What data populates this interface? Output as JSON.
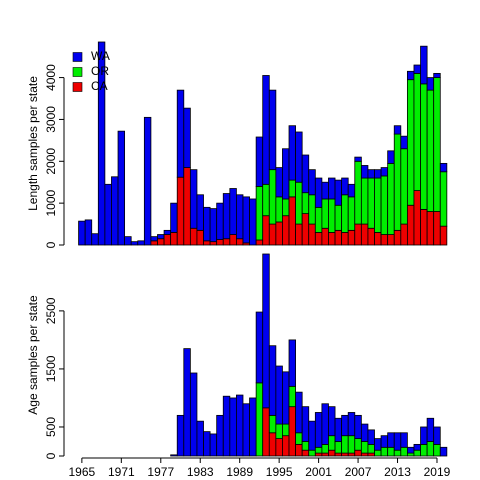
{
  "chart_data": [
    {
      "type": "bar",
      "stacked": true,
      "ylabel": "Length samples per state",
      "legend": "topleft",
      "x": [
        1965,
        1966,
        1967,
        1968,
        1969,
        1970,
        1971,
        1972,
        1973,
        1974,
        1975,
        1976,
        1977,
        1978,
        1979,
        1980,
        1981,
        1982,
        1983,
        1984,
        1985,
        1986,
        1987,
        1988,
        1989,
        1990,
        1991,
        1992,
        1993,
        1994,
        1995,
        1996,
        1997,
        1998,
        1999,
        2000,
        2001,
        2002,
        2003,
        2004,
        2005,
        2006,
        2007,
        2008,
        2009,
        2010,
        2011,
        2012,
        2013,
        2014,
        2015,
        2016,
        2017,
        2018,
        2019,
        2020,
        2021
      ],
      "xlim": [
        1963.5,
        2022.5
      ],
      "ylim": [
        0,
        4850
      ],
      "yticks": [
        0,
        1000,
        2000,
        3000,
        4000
      ],
      "series": [
        {
          "name": "WA",
          "color": "#0000ee",
          "values": [
            570,
            600,
            270,
            4850,
            1450,
            1630,
            2720,
            200,
            80,
            100,
            3050,
            100,
            100,
            100,
            700,
            2080,
            1420,
            1400,
            850,
            800,
            790,
            870,
            1080,
            1100,
            1050,
            1100,
            1100,
            1180,
            2600,
            1900,
            700,
            1200,
            1300,
            1200,
            900,
            600,
            700,
            400,
            500,
            600,
            400,
            300,
            100,
            300,
            200,
            200,
            200,
            300,
            200,
            300,
            200,
            200,
            900,
            300,
            100,
            200,
            0
          ]
        },
        {
          "name": "OR",
          "color": "#00ee00",
          "values": [
            0,
            0,
            0,
            0,
            0,
            0,
            0,
            0,
            0,
            0,
            0,
            0,
            0,
            0,
            0,
            0,
            0,
            0,
            0,
            0,
            0,
            0,
            0,
            0,
            0,
            0,
            0,
            1280,
            750,
            1300,
            600,
            400,
            400,
            1000,
            500,
            700,
            600,
            700,
            800,
            600,
            900,
            800,
            1500,
            1100,
            1200,
            1300,
            1400,
            1700,
            2300,
            1800,
            3000,
            2800,
            3000,
            2900,
            3200,
            1300,
            0
          ]
        },
        {
          "name": "CA",
          "color": "#ee0000",
          "values": [
            0,
            0,
            0,
            0,
            0,
            0,
            0,
            0,
            0,
            0,
            0,
            100,
            150,
            250,
            300,
            1620,
            1850,
            400,
            350,
            100,
            80,
            130,
            150,
            250,
            150,
            50,
            0,
            120,
            700,
            500,
            550,
            700,
            1150,
            500,
            750,
            500,
            300,
            400,
            300,
            350,
            300,
            350,
            500,
            500,
            400,
            300,
            250,
            250,
            350,
            500,
            950,
            1300,
            850,
            800,
            800,
            450,
            0
          ]
        }
      ]
    },
    {
      "type": "bar",
      "stacked": true,
      "ylabel": "Age samples per state",
      "x": [
        1965,
        1966,
        1967,
        1968,
        1969,
        1970,
        1971,
        1972,
        1973,
        1974,
        1975,
        1976,
        1977,
        1978,
        1979,
        1980,
        1981,
        1982,
        1983,
        1984,
        1985,
        1986,
        1987,
        1988,
        1989,
        1990,
        1991,
        1992,
        1993,
        1994,
        1995,
        1996,
        1997,
        1998,
        1999,
        2000,
        2001,
        2002,
        2003,
        2004,
        2005,
        2006,
        2007,
        2008,
        2009,
        2010,
        2011,
        2012,
        2013,
        2014,
        2015,
        2016,
        2017,
        2018,
        2019,
        2020,
        2021
      ],
      "xlim": [
        1963.5,
        2022.5
      ],
      "xticks": [
        1965,
        1971,
        1977,
        1983,
        1989,
        1995,
        2001,
        2007,
        2013,
        2019
      ],
      "ylim": [
        0,
        3480
      ],
      "yticks": [
        0,
        500,
        1500,
        2500
      ],
      "series": [
        {
          "color": "#0000ee",
          "values": [
            0,
            0,
            0,
            0,
            0,
            0,
            0,
            0,
            0,
            0,
            0,
            0,
            0,
            0,
            20,
            700,
            1850,
            1430,
            600,
            420,
            380,
            700,
            1030,
            1000,
            1050,
            900,
            1000,
            1220,
            2650,
            1200,
            1000,
            900,
            800,
            700,
            600,
            500,
            600,
            700,
            500,
            400,
            350,
            400,
            400,
            300,
            250,
            200,
            200,
            250,
            300,
            250,
            100,
            100,
            300,
            400,
            300,
            150,
            0
          ]
        },
        {
          "color": "#00ee00",
          "values": [
            0,
            0,
            0,
            0,
            0,
            0,
            0,
            0,
            0,
            0,
            0,
            0,
            0,
            0,
            0,
            0,
            0,
            0,
            0,
            0,
            0,
            0,
            0,
            0,
            0,
            0,
            0,
            1260,
            0,
            300,
            250,
            200,
            350,
            200,
            150,
            100,
            100,
            150,
            250,
            200,
            300,
            300,
            200,
            200,
            150,
            100,
            150,
            150,
            100,
            150,
            50,
            100,
            200,
            250,
            200,
            0,
            0
          ]
        },
        {
          "color": "#ee0000",
          "values": [
            0,
            0,
            0,
            0,
            0,
            0,
            0,
            0,
            0,
            0,
            0,
            0,
            0,
            0,
            0,
            0,
            0,
            0,
            0,
            0,
            0,
            0,
            0,
            0,
            0,
            0,
            0,
            0,
            830,
            400,
            300,
            350,
            850,
            200,
            100,
            0,
            50,
            50,
            100,
            50,
            50,
            50,
            100,
            50,
            50,
            0,
            0,
            0,
            0,
            0,
            0,
            0,
            0,
            0,
            0,
            0,
            0
          ]
        }
      ]
    }
  ]
}
